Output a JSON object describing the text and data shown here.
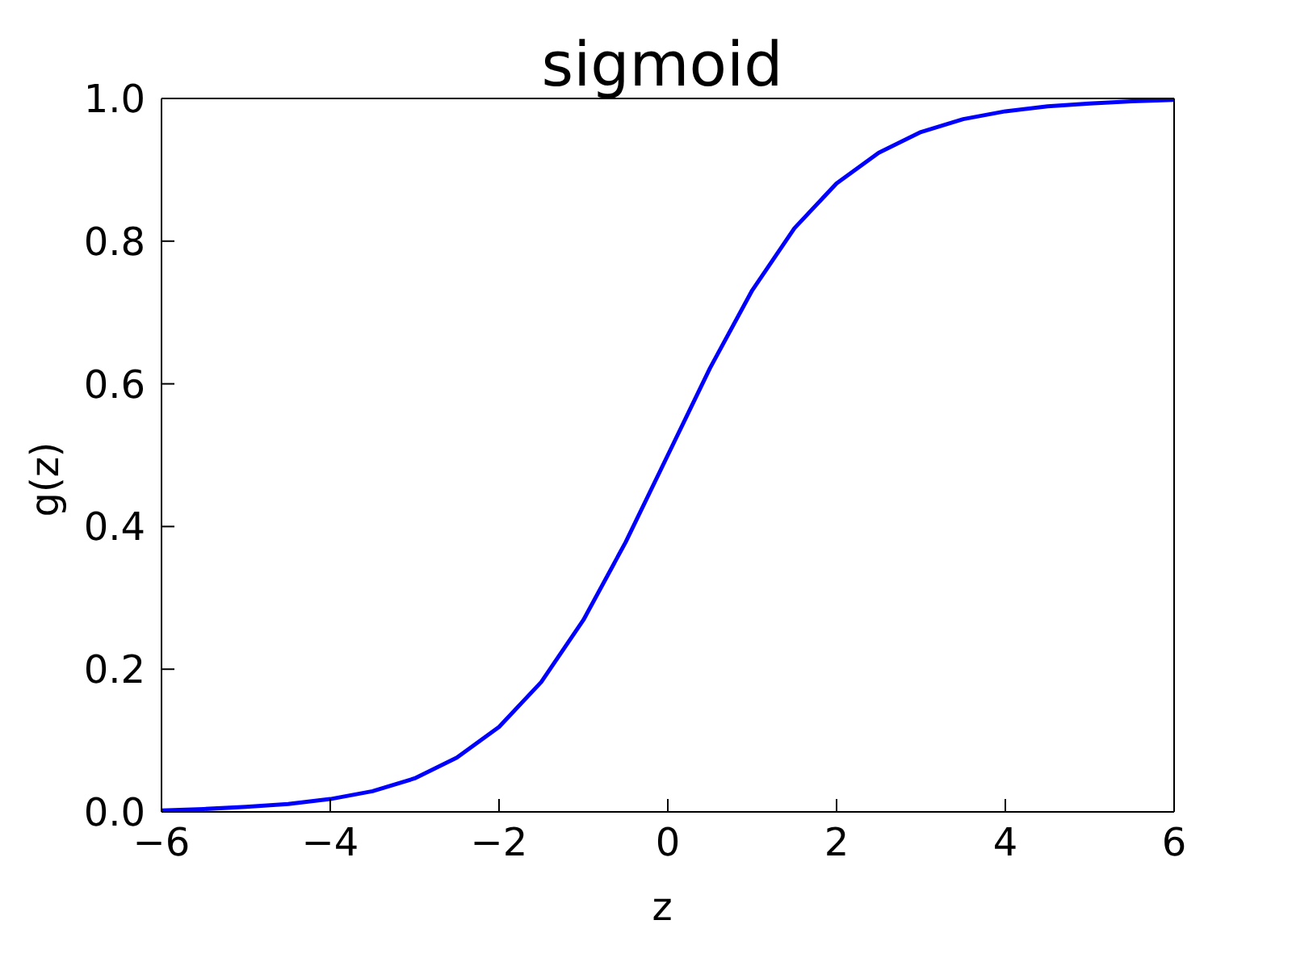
{
  "chart_data": {
    "type": "line",
    "title": "sigmoid",
    "xlabel": "z",
    "ylabel": "g(z)",
    "x": [
      -6,
      -5.5,
      -5,
      -4.5,
      -4,
      -3.5,
      -3,
      -2.5,
      -2,
      -1.5,
      -1,
      -0.5,
      0,
      0.5,
      1,
      1.5,
      2,
      2.5,
      3,
      3.5,
      4,
      4.5,
      5,
      5.5,
      6
    ],
    "series": [
      {
        "color": "#0000ff",
        "values": [
          0.002,
          0.004,
          0.007,
          0.011,
          0.018,
          0.029,
          0.047,
          0.076,
          0.119,
          0.182,
          0.269,
          0.378,
          0.5,
          0.622,
          0.731,
          0.818,
          0.881,
          0.924,
          0.953,
          0.971,
          0.982,
          0.989,
          0.993,
          0.996,
          0.998
        ]
      }
    ],
    "xlim": [
      -6,
      6
    ],
    "xticks": [
      {
        "value": -6,
        "label": "−6"
      },
      {
        "value": -4,
        "label": "−4"
      },
      {
        "value": -2,
        "label": "−2"
      },
      0,
      2,
      4,
      6
    ],
    "ylim": [
      0,
      1
    ],
    "yticks": [
      {
        "value": 0,
        "label": "0.0"
      },
      0.2,
      0.4,
      0.6,
      0.8,
      {
        "value": 1,
        "label": "1.0"
      }
    ],
    "grid": false,
    "legend": false,
    "marker": "none",
    "line_style": "solid"
  }
}
